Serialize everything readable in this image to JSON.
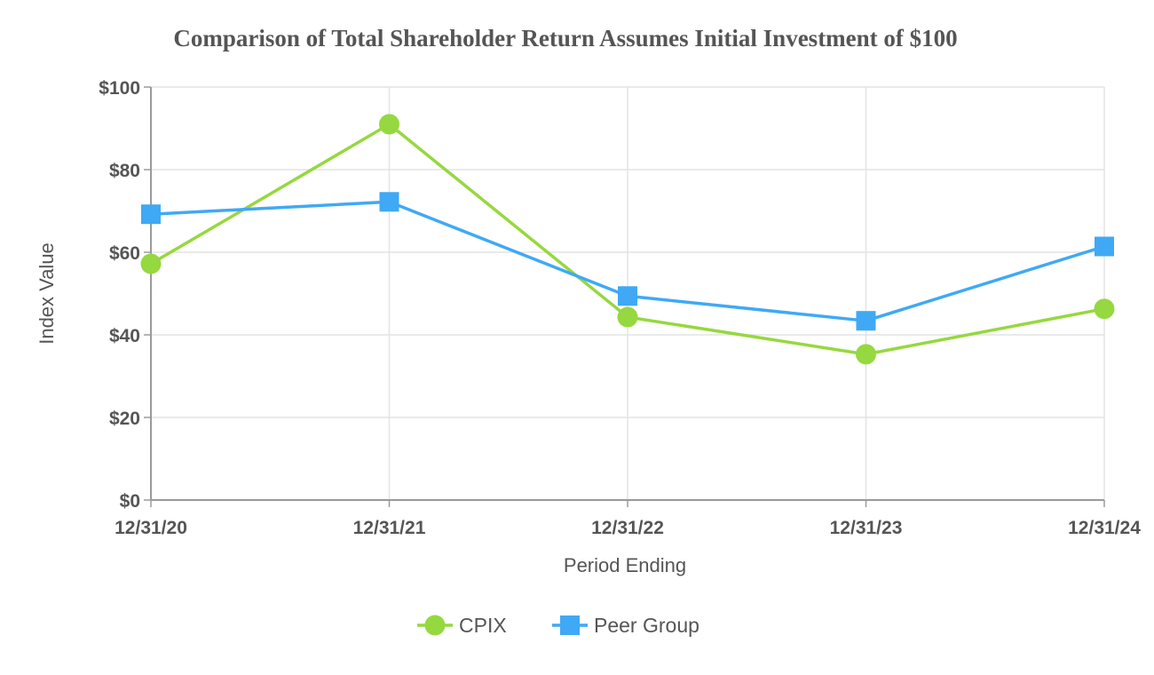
{
  "chart_data": {
    "type": "line",
    "title": "Comparison of Total Shareholder Return Assumes Initial Investment of $100",
    "xlabel": "Period Ending",
    "ylabel": "Index Value",
    "categories": [
      "12/31/20",
      "12/31/21",
      "12/31/22",
      "12/31/23",
      "12/31/24"
    ],
    "y_ticks": [
      "$0",
      "$20",
      "$40",
      "$60",
      "$80",
      "$100"
    ],
    "ylim": [
      0,
      100
    ],
    "grid": true,
    "legend_position": "bottom",
    "series": [
      {
        "name": "CPIX",
        "values": [
          57.2,
          91.0,
          44.3,
          35.3,
          46.3
        ],
        "color": "#96d83f",
        "marker": "circle"
      },
      {
        "name": "Peer Group",
        "values": [
          69.2,
          72.2,
          49.4,
          43.4,
          61.4
        ],
        "color": "#3fa9f5",
        "marker": "square"
      }
    ]
  }
}
